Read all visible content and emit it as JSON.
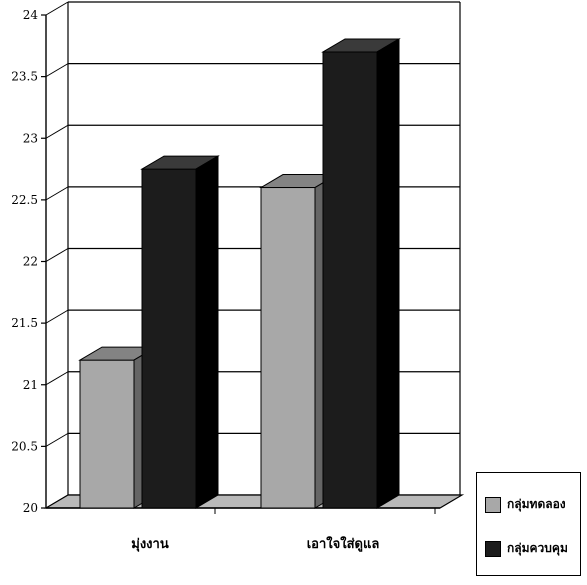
{
  "chart_data": {
    "type": "bar",
    "categories": [
      "มุ่งงาน",
      "เอาใจใส่ดูแล"
    ],
    "series": [
      {
        "name": "กลุ่มทดลอง",
        "values": [
          21.2,
          22.6
        ],
        "color": "#a8a8a8"
      },
      {
        "name": "กลุ่มควบคุม",
        "values": [
          22.75,
          23.7
        ],
        "color": "#1c1c1c"
      }
    ],
    "title": "",
    "xlabel": "",
    "ylabel": "",
    "ylim": [
      20,
      24
    ],
    "yticks": [
      "20",
      "20.5",
      "21",
      "21.5",
      "22",
      "22.5",
      "23",
      "23.5",
      "24"
    ],
    "grid": true,
    "legend_position": "bottom-right"
  }
}
